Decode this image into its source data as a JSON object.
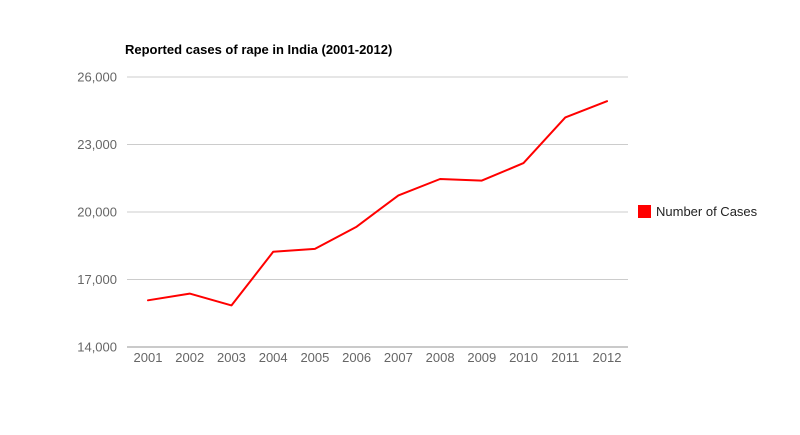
{
  "chart": {
    "title": "Reported cases of rape in India (2001-2012)",
    "legend": {
      "label": "Number of Cases"
    }
  },
  "chart_data": {
    "type": "line",
    "title": "Reported cases of rape in India (2001-2012)",
    "categories": [
      "2001",
      "2002",
      "2003",
      "2004",
      "2005",
      "2006",
      "2007",
      "2008",
      "2009",
      "2010",
      "2011",
      "2012"
    ],
    "series": [
      {
        "name": "Number of Cases",
        "color": "#ff0000",
        "values": [
          16075,
          16373,
          15847,
          18233,
          18359,
          19348,
          20737,
          21467,
          21397,
          22172,
          24206,
          24923
        ]
      }
    ],
    "xlabel": "",
    "ylabel": "",
    "ylim": [
      14000,
      26000
    ],
    "yticks": [
      14000,
      17000,
      20000,
      23000,
      26000
    ],
    "ytick_labels": [
      "14,000",
      "17,000",
      "20,000",
      "23,000",
      "26,000"
    ],
    "grid": true,
    "legend_position": "right",
    "colors": {
      "gridline": "#cccccc",
      "baseline": "#959595",
      "tick_text": "#666666",
      "title_text": "#000000",
      "background": "#ffffff"
    }
  }
}
